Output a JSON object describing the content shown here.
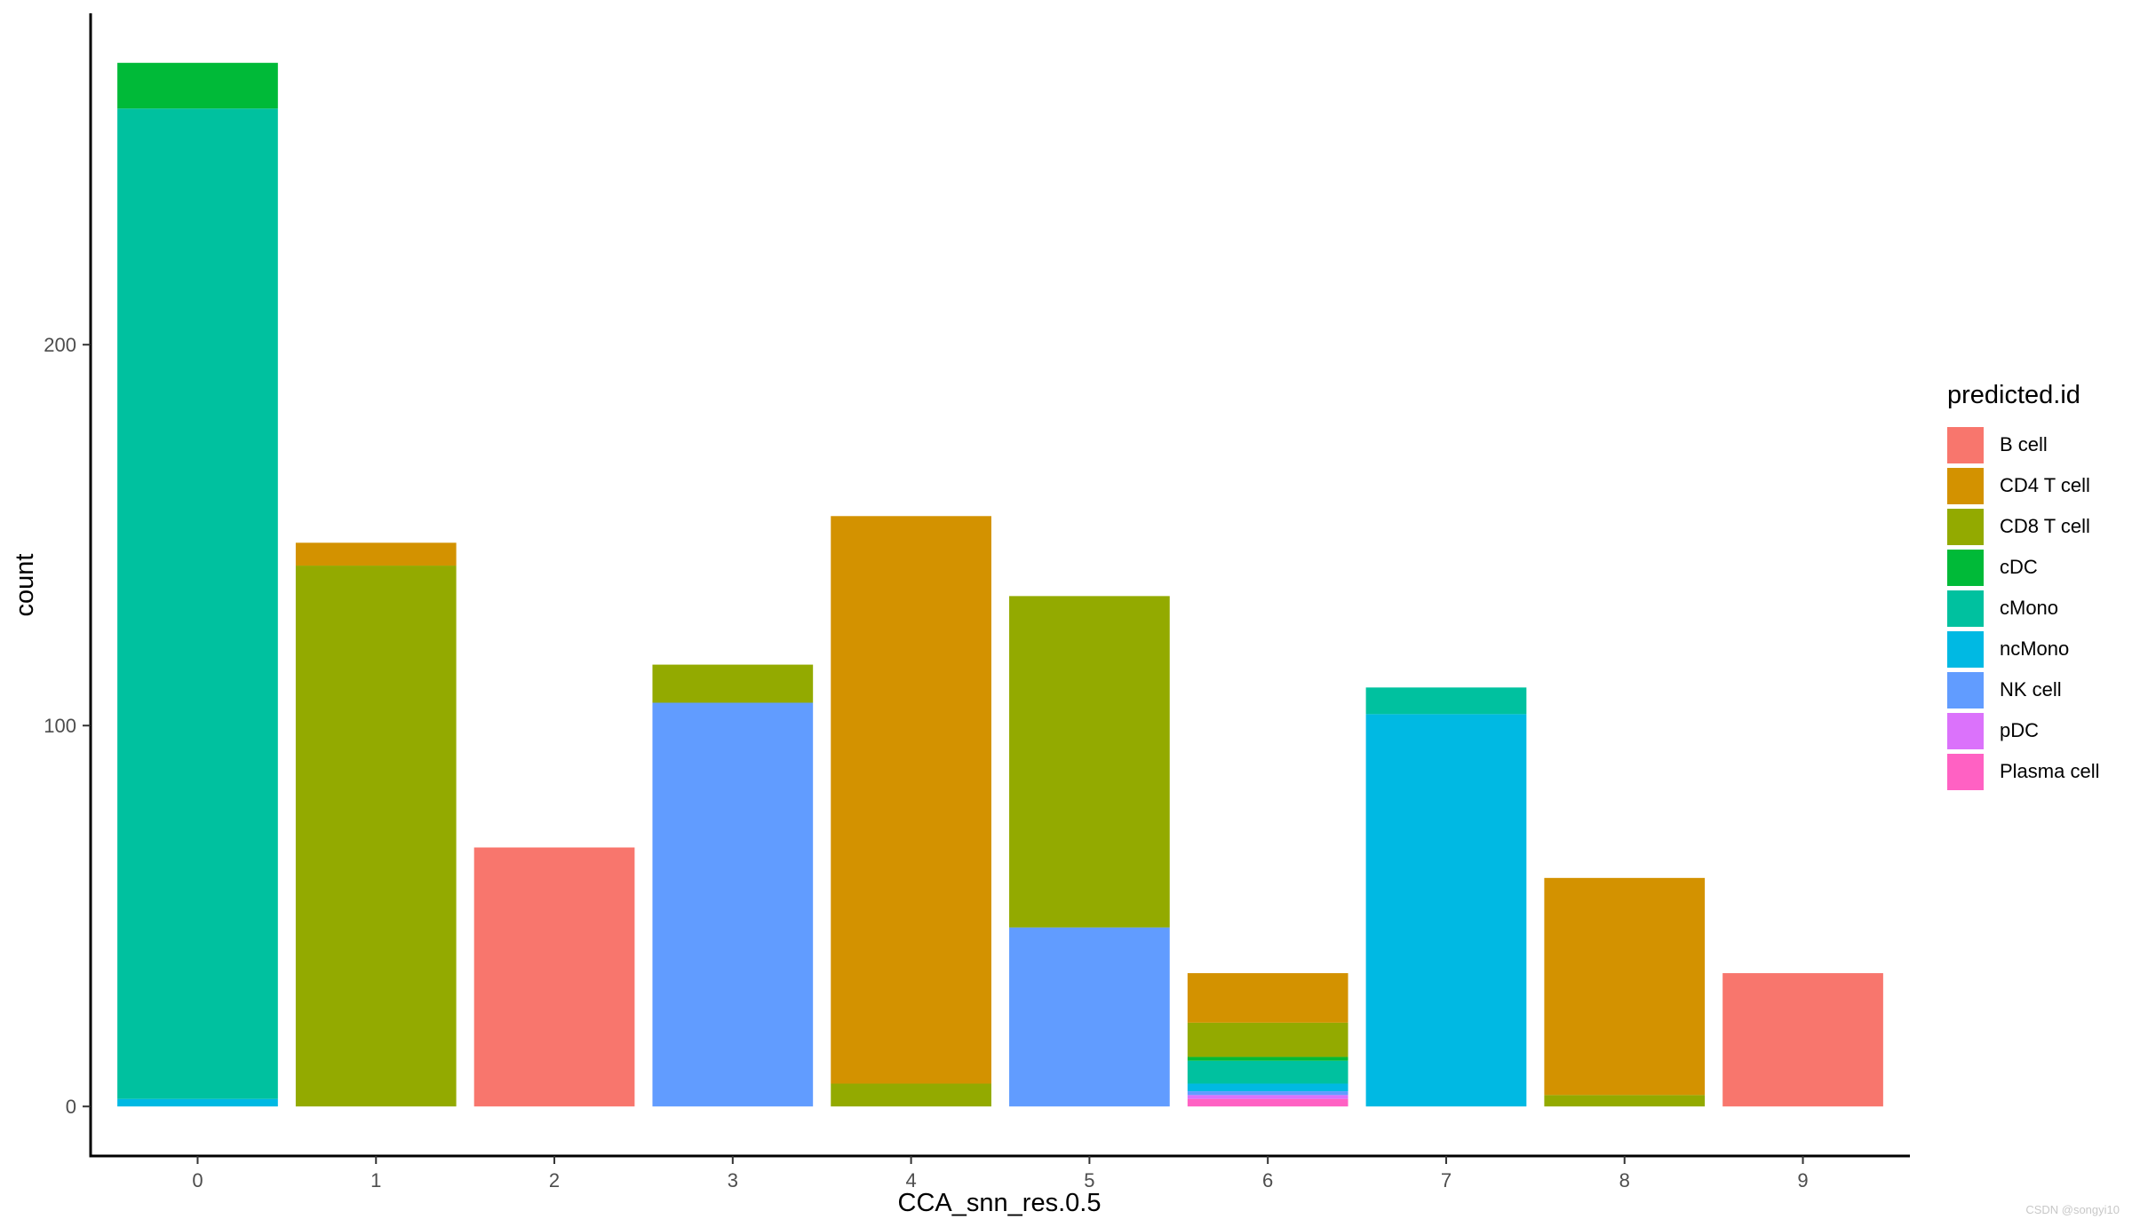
{
  "chart_data": {
    "type": "bar",
    "stacked": true,
    "xlabel": "CCA_snn_res.0.5",
    "ylabel": "count",
    "categories": [
      "0",
      "1",
      "2",
      "3",
      "4",
      "5",
      "6",
      "7",
      "8",
      "9"
    ],
    "yticks": [
      0,
      100,
      200
    ],
    "ylim": [
      -13,
      287
    ],
    "grid": false,
    "legend": {
      "title": "predicted.id",
      "position": "right"
    },
    "series": [
      {
        "name": "B cell",
        "color": "#F8766D",
        "values": [
          0,
          0,
          68,
          0,
          0,
          0,
          0,
          0,
          0,
          35
        ]
      },
      {
        "name": "CD4 T cell",
        "color": "#D39200",
        "values": [
          0,
          6,
          0,
          0,
          149,
          0,
          13,
          0,
          57,
          0
        ]
      },
      {
        "name": "CD8 T cell",
        "color": "#93AA00",
        "values": [
          0,
          142,
          0,
          10,
          6,
          87,
          9,
          0,
          3,
          0
        ]
      },
      {
        "name": "cDC",
        "color": "#00BA38",
        "values": [
          12,
          0,
          0,
          0,
          0,
          0,
          1,
          0,
          0,
          0
        ]
      },
      {
        "name": "cMono",
        "color": "#00C19F",
        "values": [
          260,
          0,
          0,
          0,
          0,
          0,
          6,
          7,
          0,
          0
        ]
      },
      {
        "name": "ncMono",
        "color": "#00B9E3",
        "values": [
          2,
          0,
          0,
          0,
          0,
          0,
          2,
          103,
          0,
          0
        ]
      },
      {
        "name": "NK cell",
        "color": "#619CFF",
        "values": [
          0,
          0,
          0,
          106,
          0,
          47,
          1,
          0,
          0,
          0
        ]
      },
      {
        "name": "pDC",
        "color": "#DB72FB",
        "values": [
          0,
          0,
          0,
          0,
          0,
          0,
          1,
          0,
          0,
          0
        ]
      },
      {
        "name": "Plasma cell",
        "color": "#FF61C3",
        "values": [
          0,
          0,
          0,
          0,
          0,
          0,
          2,
          0,
          0,
          0
        ]
      }
    ]
  },
  "watermark": "CSDN @songyi10"
}
